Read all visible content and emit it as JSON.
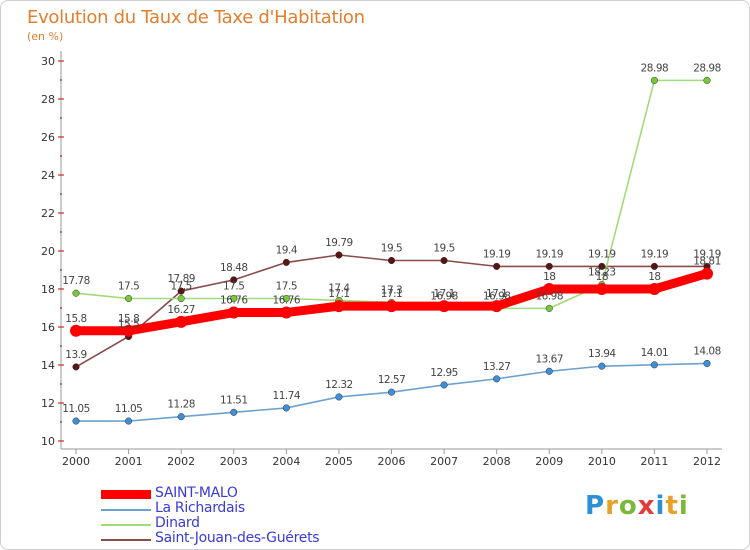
{
  "header": {
    "title": "Evolution du Taux de Taxe d'Habitation",
    "subtitle": "(en %)"
  },
  "brand": {
    "letters": [
      "P",
      "r",
      "o",
      "x",
      "i",
      "t",
      "i"
    ],
    "colors": [
      "#2d8fd5",
      "#e8a02a",
      "#7ab83a",
      "#e23b3b",
      "#2d8fd5",
      "#e8a02a",
      "#7ab83a"
    ]
  },
  "chart_data": {
    "type": "line",
    "title": "Evolution du Taux de Taxe d'Habitation",
    "ylabel": "(en %)",
    "x": [
      "2000",
      "2001",
      "2002",
      "2003",
      "2004",
      "2005",
      "2006",
      "2007",
      "2008",
      "2009",
      "2010",
      "2011",
      "2012"
    ],
    "ylim": [
      10,
      30
    ],
    "yticks": [
      "10",
      "12",
      "14",
      "16",
      "18",
      "20",
      "22",
      "24",
      "26",
      "28",
      "30"
    ],
    "grid": false,
    "legend_position": "bottom-left",
    "series": [
      {
        "name": "SAINT-MALO",
        "color": "#ff0000",
        "thick": true,
        "values": [
          15.8,
          15.8,
          16.27,
          16.76,
          16.76,
          17.1,
          17.1,
          17.1,
          17.1,
          18,
          18,
          18,
          18.81
        ],
        "labels": [
          "15.8",
          "15.8",
          "16.27",
          "16.76",
          "16.76",
          "17.1",
          "17.1",
          "17.1",
          "17.1",
          "18",
          "18",
          "18",
          "18.81"
        ]
      },
      {
        "name": "La Richardais",
        "color": "#6fa1cf",
        "marker": "#3f8fd8",
        "thick": false,
        "values": [
          11.05,
          11.05,
          11.28,
          11.51,
          11.74,
          12.32,
          12.57,
          12.95,
          13.27,
          13.67,
          13.94,
          14.01,
          14.08
        ],
        "labels": [
          "11.05",
          "11.05",
          "11.28",
          "11.51",
          "11.74",
          "12.32",
          "12.57",
          "12.95",
          "13.27",
          "13.67",
          "13.94",
          "14.01",
          "14.08"
        ]
      },
      {
        "name": "Dinard",
        "color": "#a2dc7a",
        "marker": "#76c93a",
        "thick": false,
        "values": [
          17.78,
          17.5,
          17.5,
          17.5,
          17.5,
          17.4,
          17.3,
          16.98,
          16.98,
          16.98,
          18.23,
          28.98,
          28.98
        ],
        "labels": [
          "17.78",
          "17.5",
          "17.5",
          "17.5",
          "17.5",
          "17.4",
          "17.3",
          "16.98",
          "16.98",
          "16.98",
          "18.23",
          "28.98",
          "28.98"
        ]
      },
      {
        "name": "Saint-Jouan-des-Guérets",
        "color": "#8a4b4b",
        "marker": "#5a1414",
        "thick": false,
        "values": [
          13.9,
          15.5,
          17.89,
          18.48,
          19.4,
          19.79,
          19.5,
          19.5,
          19.19,
          19.19,
          19.19,
          19.19,
          19.19
        ],
        "labels": [
          "13.9",
          "15.5",
          "17.89",
          "18.48",
          "19.4",
          "19.79",
          "19.5",
          "19.5",
          "19.19",
          "19.19",
          "19.19",
          "19.19",
          "19.19"
        ]
      }
    ]
  }
}
